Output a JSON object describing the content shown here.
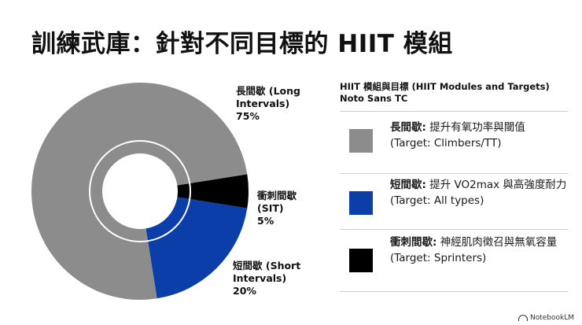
{
  "title": "訓練武庫：針對不同目標的 HIIT 模組",
  "legend": {
    "heading_line1": "HIIT 模組與目標 (HIIT Modules and Targets)",
    "heading_line2": "Noto Sans TC",
    "items": [
      {
        "name": "長間歇:",
        "desc": " 提升有氧功率與閾值",
        "target": "(Target: Climbers/TT)",
        "icon": "square-swatch"
      },
      {
        "name": "短間歇:",
        "desc": " 提升 VO2max 與高強度耐力",
        "target": "(Target: All types)",
        "icon": "square-swatch"
      },
      {
        "name": "衝刺間歇:",
        "desc": " 神經肌肉徵召與無氧容量",
        "target": "(Target: Sprinters)",
        "icon": "square-swatch"
      }
    ]
  },
  "chart_data": {
    "type": "pie",
    "variant": "donut",
    "slices": [
      {
        "label": "長間歇 (Long Intervals)",
        "value": 75,
        "value_label": "75%",
        "color": "#8c8c8c"
      },
      {
        "label": "短間歇 (Short Intervals)",
        "value": 20,
        "value_label": "20%",
        "color": "#0b3ea8"
      },
      {
        "label": "衝刺間歇 (SIT)",
        "value": 5,
        "value_label": "5%",
        "color": "#000000"
      }
    ]
  },
  "footer": {
    "brand": "NotebookLM"
  }
}
